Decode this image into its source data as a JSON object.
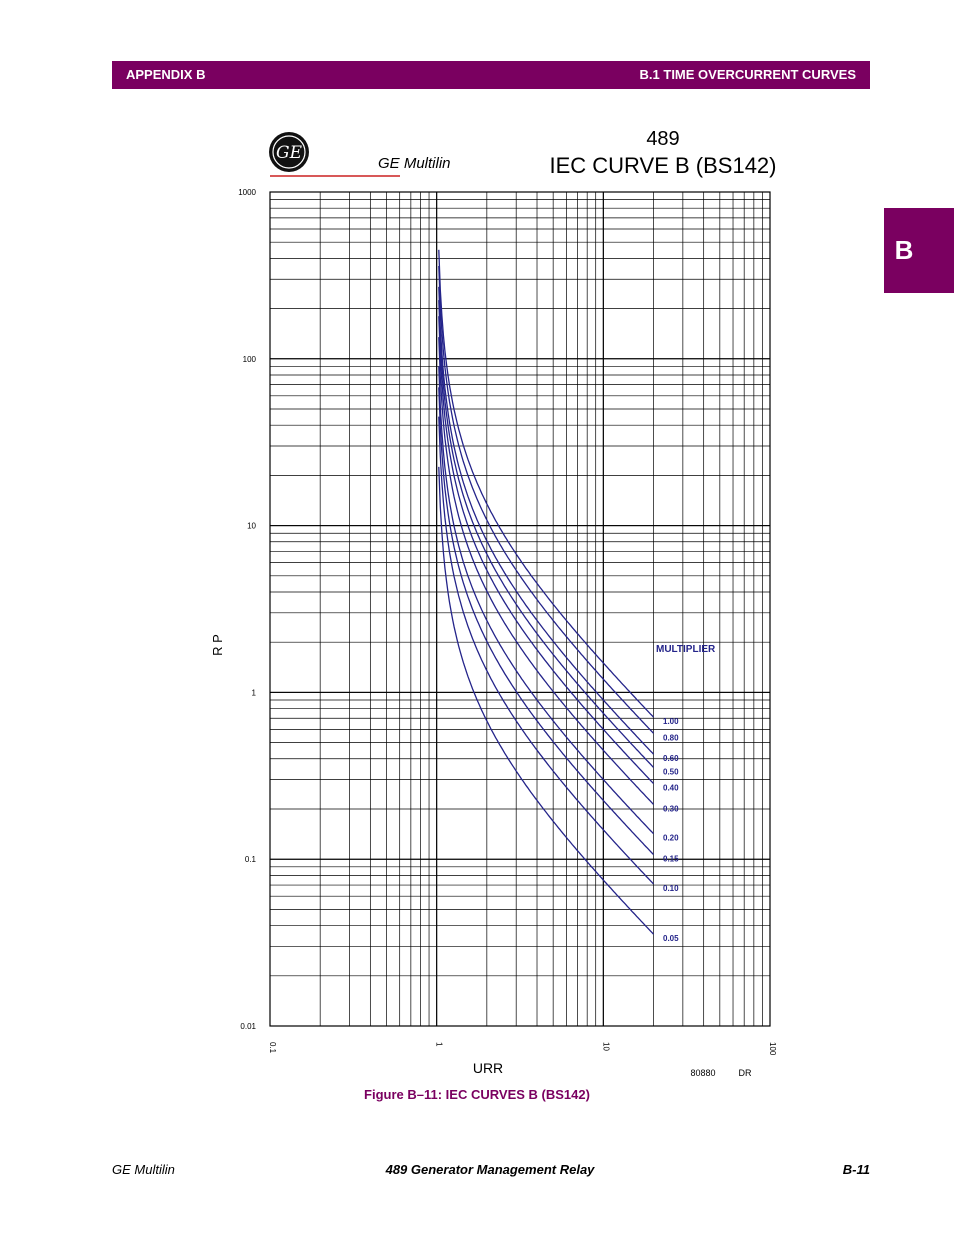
{
  "header": {
    "left": "APPENDIX B",
    "right": "B.1 TIME OVERCURRENT CURVES"
  },
  "side_tab": "B",
  "logo": {
    "emblem_text": "GE",
    "brand": "GE Multilin"
  },
  "figure": {
    "title_line1": "489",
    "title_line2": "IEC CURVE B (BS142)",
    "caption": "Figure B–11: IEC CURVES B (BS142)",
    "drawing_number": "80880",
    "drawing_suffix": "DR"
  },
  "footer": {
    "left": "GE Multilin",
    "center": "489 Generator Management Relay",
    "right": "B-11"
  },
  "colors": {
    "accent": "#7a0060",
    "curve": "#24248a"
  },
  "chart_data": {
    "type": "line",
    "title": "IEC CURVE B (BS142)",
    "xlabel": "URR",
    "ylabel": "R P",
    "xscale": "log",
    "yscale": "log",
    "xlim": [
      0.1,
      100
    ],
    "ylim": [
      0.01,
      1000
    ],
    "x_ticks": [
      "0.1",
      "1",
      "10",
      "100"
    ],
    "y_ticks": [
      "1000",
      "100",
      "10",
      "1",
      "0.1",
      "0.01"
    ],
    "legend_title": "MULTIPLIER",
    "series": [
      {
        "name": "1.00",
        "k": 13.5,
        "alpha": 1
      },
      {
        "name": "0.80",
        "k": 10.8,
        "alpha": 1
      },
      {
        "name": "0.60",
        "k": 8.1,
        "alpha": 1
      },
      {
        "name": "0.50",
        "k": 6.75,
        "alpha": 1
      },
      {
        "name": "0.40",
        "k": 5.4,
        "alpha": 1
      },
      {
        "name": "0.30",
        "k": 4.05,
        "alpha": 1
      },
      {
        "name": "0.20",
        "k": 2.7,
        "alpha": 1
      },
      {
        "name": "0.15",
        "k": 2.025,
        "alpha": 1
      },
      {
        "name": "0.10",
        "k": 1.35,
        "alpha": 1
      },
      {
        "name": "0.05",
        "k": 0.675,
        "alpha": 1
      }
    ],
    "x_range": [
      1.03,
      20
    ],
    "grid": true
  }
}
